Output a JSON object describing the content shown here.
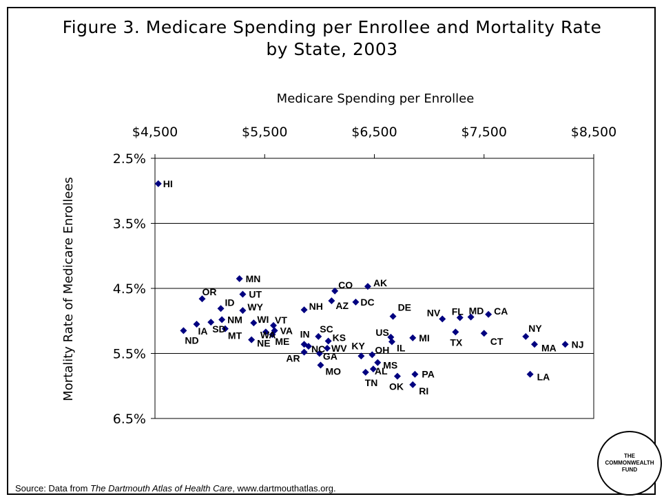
{
  "title_line1": "Figure 3. Medicare Spending per Enrollee and Mortality Rate",
  "title_line2": "by State, 2003",
  "source": {
    "prefix": "Source:  Data from ",
    "italic": "The Dartmouth Atlas of Health Care",
    "suffix": ", www.dartmouthatlas.org."
  },
  "logo": {
    "line1": "THE",
    "line2": "COMMONWEALTH",
    "line3": "FUND"
  },
  "chart_data": {
    "type": "scatter",
    "xlabel": "Medicare Spending per Enrollee",
    "ylabel": "Mortality Rate of Medicare Enrollees",
    "xlim": [
      4500,
      8500
    ],
    "ylim": [
      2.5,
      6.5
    ],
    "y_reversed": true,
    "x_axis_position": "top",
    "x_ticks": [
      4500,
      5500,
      6500,
      7500,
      8500
    ],
    "x_tick_labels": [
      "$4,500",
      "$5,500",
      "$6,500",
      "$7,500",
      "$8,500"
    ],
    "y_ticks": [
      2.5,
      3.5,
      4.5,
      5.5,
      6.5
    ],
    "y_tick_labels": [
      "2.5%",
      "3.5%",
      "4.5%",
      "5.5%",
      "6.5%"
    ],
    "horizontal_gridlines": true,
    "marker_color": "#000080",
    "points": [
      {
        "state": "HI",
        "x": 4530,
        "y": 2.89
      },
      {
        "state": "ND",
        "x": 4760,
        "y": 5.15
      },
      {
        "state": "IA",
        "x": 4880,
        "y": 5.05
      },
      {
        "state": "OR",
        "x": 4930,
        "y": 4.66
      },
      {
        "state": "SD",
        "x": 5010,
        "y": 5.02
      },
      {
        "state": "ID",
        "x": 5100,
        "y": 4.81
      },
      {
        "state": "NM",
        "x": 5110,
        "y": 4.98
      },
      {
        "state": "MT",
        "x": 5140,
        "y": 5.12
      },
      {
        "state": "MN",
        "x": 5270,
        "y": 4.35
      },
      {
        "state": "UT",
        "x": 5300,
        "y": 4.59
      },
      {
        "state": "WY",
        "x": 5300,
        "y": 4.84
      },
      {
        "state": "NE",
        "x": 5380,
        "y": 5.29
      },
      {
        "state": "WI",
        "x": 5400,
        "y": 5.03
      },
      {
        "state": "WA",
        "x": 5510,
        "y": 5.17
      },
      {
        "state": "ME",
        "x": 5570,
        "y": 5.21
      },
      {
        "state": "VT",
        "x": 5580,
        "y": 5.07
      },
      {
        "state": "VA",
        "x": 5590,
        "y": 5.15
      },
      {
        "state": "NH",
        "x": 5860,
        "y": 4.83
      },
      {
        "state": "IN",
        "x": 5860,
        "y": 5.36
      },
      {
        "state": "AR",
        "x": 5860,
        "y": 5.48
      },
      {
        "state": "NC",
        "x": 5900,
        "y": 5.39
      },
      {
        "state": "SC",
        "x": 5990,
        "y": 5.24
      },
      {
        "state": "GA",
        "x": 6000,
        "y": 5.5
      },
      {
        "state": "MO",
        "x": 6010,
        "y": 5.68
      },
      {
        "state": "KS",
        "x": 6080,
        "y": 5.31
      },
      {
        "state": "WV",
        "x": 6070,
        "y": 5.42
      },
      {
        "state": "AZ",
        "x": 6110,
        "y": 4.69
      },
      {
        "state": "CO",
        "x": 6140,
        "y": 4.54
      },
      {
        "state": "DC",
        "x": 6330,
        "y": 4.71
      },
      {
        "state": "KY",
        "x": 6380,
        "y": 5.54
      },
      {
        "state": "TN",
        "x": 6420,
        "y": 5.79
      },
      {
        "state": "AK",
        "x": 6440,
        "y": 4.47
      },
      {
        "state": "OH",
        "x": 6480,
        "y": 5.52
      },
      {
        "state": "AL",
        "x": 6490,
        "y": 5.74
      },
      {
        "state": "MS",
        "x": 6530,
        "y": 5.64
      },
      {
        "state": "US",
        "x": 6650,
        "y": 5.25
      },
      {
        "state": "DE",
        "x": 6670,
        "y": 4.93
      },
      {
        "state": "IL",
        "x": 6660,
        "y": 5.32
      },
      {
        "state": "OK",
        "x": 6710,
        "y": 5.85
      },
      {
        "state": "RI",
        "x": 6850,
        "y": 5.98
      },
      {
        "state": "MI",
        "x": 6850,
        "y": 5.26
      },
      {
        "state": "PA",
        "x": 6870,
        "y": 5.82
      },
      {
        "state": "NV",
        "x": 7120,
        "y": 4.97
      },
      {
        "state": "TX",
        "x": 7240,
        "y": 5.17
      },
      {
        "state": "FL",
        "x": 7280,
        "y": 4.95
      },
      {
        "state": "MD",
        "x": 7380,
        "y": 4.94
      },
      {
        "state": "CT",
        "x": 7500,
        "y": 5.19
      },
      {
        "state": "CA",
        "x": 7540,
        "y": 4.9
      },
      {
        "state": "NY",
        "x": 7880,
        "y": 5.24
      },
      {
        "state": "LA",
        "x": 7920,
        "y": 5.82
      },
      {
        "state": "MA",
        "x": 7960,
        "y": 5.36
      },
      {
        "state": "NJ",
        "x": 8240,
        "y": 5.36
      }
    ]
  }
}
